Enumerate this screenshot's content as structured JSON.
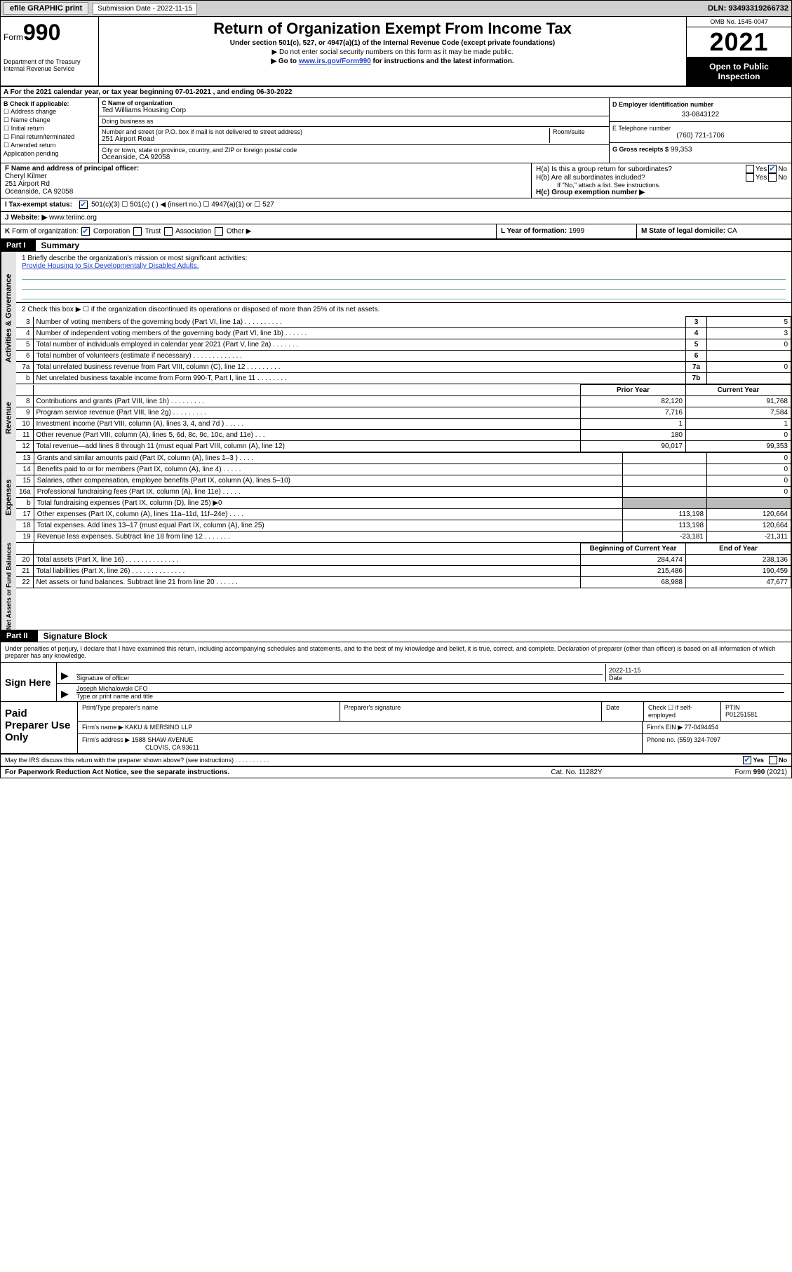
{
  "topbar": {
    "efile": "efile GRAPHIC print",
    "sub_label": "Submission Date",
    "sub_date": "2022-11-15",
    "dln_label": "DLN:",
    "dln": "93493319266732"
  },
  "header": {
    "form_label": "Form",
    "form_num": "990",
    "dept": "Department of the Treasury\nInternal Revenue Service",
    "title": "Return of Organization Exempt From Income Tax",
    "subtitle": "Under section 501(c), 527, or 4947(a)(1) of the Internal Revenue Code (except private foundations)",
    "note1": "▶ Do not enter social security numbers on this form as it may be made public.",
    "note2_a": "▶ Go to ",
    "note2_link": "www.irs.gov/Form990",
    "note2_b": " for instructions and the latest information.",
    "omb": "OMB No. 1545-0047",
    "year": "2021",
    "inspect": "Open to Public Inspection"
  },
  "row_a": "A For the 2021 calendar year, or tax year beginning 07-01-2021   , and ending 06-30-2022",
  "col_b": {
    "title": "B Check if applicable:",
    "items": [
      "☐ Address change",
      "☐ Name change",
      "☐ Initial return",
      "☐ Final return/terminated",
      "☐ Amended return",
      "  Application pending"
    ]
  },
  "col_c": {
    "name_label": "C Name of organization",
    "name": "Ted Williams Housing Corp",
    "dba_label": "Doing business as",
    "dba": "",
    "street_label": "Number and street (or P.O. box if mail is not delivered to street address)",
    "room_label": "Room/suite",
    "street": "251 Airport Road",
    "city_label": "City or town, state or province, country, and ZIP or foreign postal code",
    "city": "Oceanside, CA  92058"
  },
  "col_d": {
    "ein_label": "D Employer identification number",
    "ein": "33-0843122",
    "tel_label": "E Telephone number",
    "tel": "(760) 721-1706",
    "gross_label": "G Gross receipts $",
    "gross": "99,353"
  },
  "row_f": {
    "label": "F  Name and address of principal officer:",
    "name": "Cheryl Kilmer",
    "addr1": "251 Airport Rd",
    "addr2": "Oceanside, CA  92058"
  },
  "row_h": {
    "ha_label": "H(a)  Is this a group return for subordinates?",
    "hb_label": "H(b)  Are all subordinates included?",
    "hb_note": "If \"No,\" attach a list. See instructions.",
    "hc_label": "H(c)  Group exemption number ▶"
  },
  "row_i": "I   Tax-exempt status:",
  "row_i_opts": "501(c)(3)      ☐  501(c) (  ) ◀ (insert no.)      ☐  4947(a)(1) or   ☐  527",
  "row_j_label": "J   Website: ▶ ",
  "row_j_val": "www.teriinc.org",
  "row_k": "K Form of organization:       Corporation   ☐  Trust   ☐  Association   ☐  Other ▶",
  "row_l_label": "L Year of formation:",
  "row_l_val": "1999",
  "row_m_label": "M State of legal domicile:",
  "row_m_val": "CA",
  "part1": {
    "tab": "Part I",
    "title": "Summary",
    "side1": "Activities & Governance",
    "side2": "Revenue",
    "side3": "Expenses",
    "side4": "Net Assets or Fund Balances",
    "l1_label": "1   Briefly describe the organization's mission or most significant activities:",
    "l1_text": "Provide Housing to Six Developmentally Disabled Adults.",
    "l2": "2   Check this box ▶ ☐  if the organization discontinued its operations or disposed of more than 25% of its net assets.",
    "rows_act": [
      {
        "n": "3",
        "label": "Number of voting members of the governing body (Part VI, line 1a)   .    .    .    .    .    .    .    .    .    .",
        "b": "3",
        "v": "5"
      },
      {
        "n": "4",
        "label": "Number of independent voting members of the governing body (Part VI, line 1b)   .    .    .    .    .    .",
        "b": "4",
        "v": "3"
      },
      {
        "n": "5",
        "label": "Total number of individuals employed in calendar year 2021 (Part V, line 2a)    .    .    .    .    .    .    .",
        "b": "5",
        "v": "0"
      },
      {
        "n": "6",
        "label": "Total number of volunteers (estimate if necessary)    .    .    .    .    .    .    .    .    .    .    .    .    .",
        "b": "6",
        "v": ""
      },
      {
        "n": "7a",
        "label": "Total unrelated business revenue from Part VIII, column (C), line 12    .    .    .    .    .    .    .    .    .",
        "b": "7a",
        "v": "0"
      },
      {
        "n": "b",
        "label": "Net unrelated business taxable income from Form 990-T, Part I, line 11    .    .    .    .    .    .    .    .",
        "b": "7b",
        "v": ""
      }
    ],
    "hdr_prior": "Prior Year",
    "hdr_curr": "Current Year",
    "rows_rev": [
      {
        "n": "8",
        "label": "Contributions and grants (Part VIII, line 1h)    .    .    .    .    .    .    .    .    .",
        "p": "82,120",
        "c": "91,768"
      },
      {
        "n": "9",
        "label": "Program service revenue (Part VIII, line 2g)    .    .    .    .    .    .    .    .    .",
        "p": "7,716",
        "c": "7,584"
      },
      {
        "n": "10",
        "label": "Investment income (Part VIII, column (A), lines 3, 4, and 7d )    .    .    .    .    .",
        "p": "1",
        "c": "1"
      },
      {
        "n": "11",
        "label": "Other revenue (Part VIII, column (A), lines 5, 6d, 8c, 9c, 10c, and 11e)    .    .    .",
        "p": "180",
        "c": "0"
      },
      {
        "n": "12",
        "label": "Total revenue—add lines 8 through 11 (must equal Part VIII, column (A), line 12)",
        "p": "90,017",
        "c": "99,353"
      }
    ],
    "rows_exp": [
      {
        "n": "13",
        "label": "Grants and similar amounts paid (Part IX, column (A), lines 1–3 )    .    .    .    .",
        "p": "",
        "c": "0"
      },
      {
        "n": "14",
        "label": "Benefits paid to or for members (Part IX, column (A), line 4)    .    .    .    .    .",
        "p": "",
        "c": "0"
      },
      {
        "n": "15",
        "label": "Salaries, other compensation, employee benefits (Part IX, column (A), lines 5–10)",
        "p": "",
        "c": "0"
      },
      {
        "n": "16a",
        "label": "Professional fundraising fees (Part IX, column (A), line 11e)    .    .    .    .    .",
        "p": "",
        "c": "0"
      },
      {
        "n": "b",
        "label": "Total fundraising expenses (Part IX, column (D), line 25) ▶0",
        "p": "shade",
        "c": "shade"
      },
      {
        "n": "17",
        "label": "Other expenses (Part IX, column (A), lines 11a–11d, 11f–24e)    .    .    .    .",
        "p": "113,198",
        "c": "120,664"
      },
      {
        "n": "18",
        "label": "Total expenses. Add lines 13–17 (must equal Part IX, column (A), line 25)",
        "p": "113,198",
        "c": "120,664"
      },
      {
        "n": "19",
        "label": "Revenue less expenses. Subtract line 18 from line 12    .    .    .    .    .    .    .",
        "p": "-23,181",
        "c": "-21,311"
      }
    ],
    "hdr_beg": "Beginning of Current Year",
    "hdr_end": "End of Year",
    "rows_net": [
      {
        "n": "20",
        "label": "Total assets (Part X, line 16)    .    .    .    .    .    .    .    .    .    .    .    .    .    .",
        "p": "284,474",
        "c": "238,136"
      },
      {
        "n": "21",
        "label": "Total liabilities (Part X, line 26)    .    .    .    .    .    .    .    .    .    .    .    .    .    .",
        "p": "215,486",
        "c": "190,459"
      },
      {
        "n": "22",
        "label": "Net assets or fund balances. Subtract line 21 from line 20    .    .    .    .    .    .",
        "p": "68,988",
        "c": "47,677"
      }
    ]
  },
  "part2": {
    "tab": "Part II",
    "title": "Signature Block",
    "penalties": "Under penalties of perjury, I declare that I have examined this return, including accompanying schedules and statements, and to the best of my knowledge and belief, it is true, correct, and complete. Declaration of preparer (other than officer) is based on all information of which preparer has any knowledge."
  },
  "sign": {
    "here": "Sign Here",
    "sig_label": "Signature of officer",
    "date_label": "Date",
    "date": "2022-11-15",
    "name": "Joseph Michalowski CFO",
    "name_label": "Type or print name and title"
  },
  "prep": {
    "title": "Paid Preparer Use Only",
    "h1": "Print/Type preparer's name",
    "h2": "Preparer's signature",
    "h3": "Date",
    "h4_a": "Check ☐ if self-employed",
    "h4_b": "PTIN",
    "ptin": "P01251581",
    "firm_label": "Firm's name   ▶",
    "firm": "KAKU & MERSINO LLP",
    "ein_label": "Firm's EIN ▶",
    "ein": "77-0494454",
    "addr_label": "Firm's address ▶",
    "addr1": "1588 SHAW AVENUE",
    "addr2": "CLOVIS, CA  93611",
    "phone_label": "Phone no.",
    "phone": "(559) 324-7097"
  },
  "footer": {
    "discuss": "May the IRS discuss this return with the preparer shown above? (see instructions)    .    .    .    .    .    .    .    .    .    .",
    "yes": "Yes",
    "no": "No",
    "pra": "For Paperwork Reduction Act Notice, see the separate instructions.",
    "cat": "Cat. No. 11282Y",
    "form": "Form 990 (2021)"
  },
  "colors": {
    "link": "#2244cc",
    "check": "#0066ff",
    "shade": "#bbbbbb",
    "topbar": "#d0d0d0"
  }
}
